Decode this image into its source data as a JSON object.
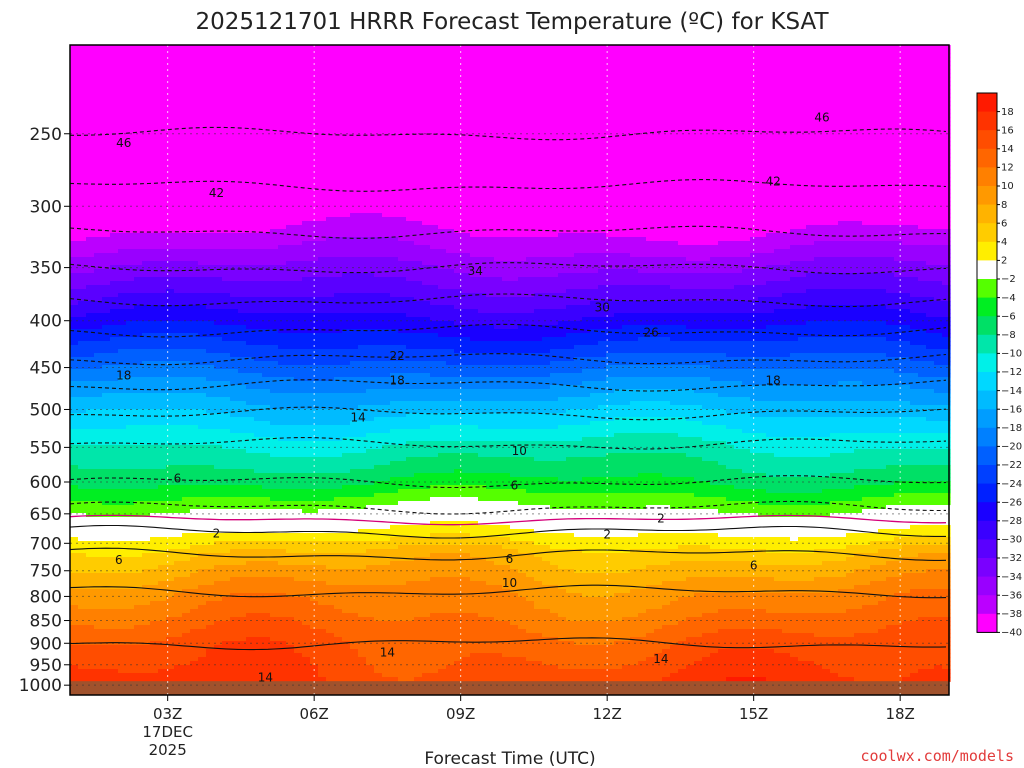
{
  "chart_data": {
    "type": "heatmap",
    "title": "2025121701 HRRR Forecast Temperature (ºC) for KSAT",
    "xlabel": "Forecast Time (UTC)",
    "x_ticks": [
      "03Z",
      "06Z",
      "09Z",
      "12Z",
      "15Z",
      "18Z"
    ],
    "x_date_lines": [
      "17DEC",
      "2025"
    ],
    "x_range_hours": [
      1,
      19
    ],
    "y_scale": "log-pressure",
    "y_ticks": [
      250,
      300,
      350,
      400,
      450,
      500,
      550,
      600,
      650,
      700,
      750,
      800,
      850,
      900,
      950,
      1000
    ],
    "y_range_hPa": [
      200,
      1025
    ],
    "ground_level_hPa": 990,
    "colorbar_levels": [
      18,
      16,
      14,
      12,
      10,
      8,
      6,
      4,
      2,
      -2,
      -4,
      -6,
      -8,
      -10,
      -12,
      -14,
      -16,
      -18,
      -20,
      -22,
      -24,
      -26,
      -28,
      -30,
      -32,
      -34,
      -36,
      -38,
      -40
    ],
    "colorbar_colors": [
      "#ff1a00",
      "#ff3300",
      "#ff4d00",
      "#ff6600",
      "#ff8000",
      "#ff9900",
      "#ffb300",
      "#ffcc00",
      "#ffee00",
      "#ffffff",
      "#55ff00",
      "#00ee22",
      "#00e066",
      "#00e6aa",
      "#00f0e8",
      "#00d8ff",
      "#00bbff",
      "#009dff",
      "#0080ff",
      "#0060ff",
      "#0040ff",
      "#0020ff",
      "#1a00ff",
      "#3a00ff",
      "#5a00ff",
      "#7a00ff",
      "#9900ff",
      "#bb00ff",
      "#ff00ff"
    ],
    "temperature_profile": [
      {
        "p": 225,
        "t": -48
      },
      {
        "p": 250,
        "t": -46
      },
      {
        "p": 285,
        "t": -42
      },
      {
        "p": 320,
        "t": -38
      },
      {
        "p": 350,
        "t": -34
      },
      {
        "p": 380,
        "t": -30
      },
      {
        "p": 410,
        "t": -26
      },
      {
        "p": 440,
        "t": -22
      },
      {
        "p": 470,
        "t": -18
      },
      {
        "p": 505,
        "t": -14
      },
      {
        "p": 545,
        "t": -10
      },
      {
        "p": 600,
        "t": -6
      },
      {
        "p": 640,
        "t": -2
      },
      {
        "p": 680,
        "t": 2
      },
      {
        "p": 720,
        "t": 6
      },
      {
        "p": 790,
        "t": 10
      },
      {
        "p": 900,
        "t": 14
      },
      {
        "p": 990,
        "t": 16
      }
    ],
    "contour_labels": [
      {
        "text": "46",
        "x": 2.1,
        "p": 256
      },
      {
        "text": "46",
        "x": 16.4,
        "p": 240
      },
      {
        "text": "42",
        "x": 4.0,
        "p": 290
      },
      {
        "text": "42",
        "x": 15.4,
        "p": 282
      },
      {
        "text": "34",
        "x": 9.3,
        "p": 353
      },
      {
        "text": "30",
        "x": 11.9,
        "p": 387
      },
      {
        "text": "26",
        "x": 12.9,
        "p": 412
      },
      {
        "text": "22",
        "x": 7.7,
        "p": 437
      },
      {
        "text": "18",
        "x": 2.1,
        "p": 459
      },
      {
        "text": "18",
        "x": 7.7,
        "p": 465
      },
      {
        "text": "18",
        "x": 15.4,
        "p": 465
      },
      {
        "text": "14",
        "x": 6.9,
        "p": 510
      },
      {
        "text": "10",
        "x": 10.2,
        "p": 555
      },
      {
        "text": "6",
        "x": 3.2,
        "p": 595
      },
      {
        "text": "6",
        "x": 10.1,
        "p": 605
      },
      {
        "text": "2",
        "x": 13.1,
        "p": 658
      },
      {
        "text": "2",
        "x": 4.0,
        "p": 683
      },
      {
        "text": "2",
        "x": 12.0,
        "p": 685
      },
      {
        "text": "6",
        "x": 2.0,
        "p": 730
      },
      {
        "text": "6",
        "x": 10.0,
        "p": 728
      },
      {
        "text": "6",
        "x": 15.0,
        "p": 740
      },
      {
        "text": "10",
        "x": 10.0,
        "p": 773
      },
      {
        "text": "14",
        "x": 7.5,
        "p": 921
      },
      {
        "text": "14",
        "x": 13.1,
        "p": 936
      },
      {
        "text": "14",
        "x": 5.0,
        "p": 981
      }
    ]
  },
  "colorbar_labels": [
    "18",
    "16",
    "14",
    "12",
    "10",
    "8",
    "6",
    "4",
    "2",
    "−2",
    "−4",
    "−6",
    "−8",
    "−10",
    "−12",
    "−14",
    "−16",
    "−18",
    "−20",
    "−22",
    "−24",
    "−26",
    "−28",
    "−30",
    "−32",
    "−34",
    "−36",
    "−38",
    "−40"
  ],
  "credit": "coolwx.com/models",
  "colors": {
    "ground": "#a0522d",
    "contour": "#111111",
    "freezing_line": "#d4007a"
  }
}
